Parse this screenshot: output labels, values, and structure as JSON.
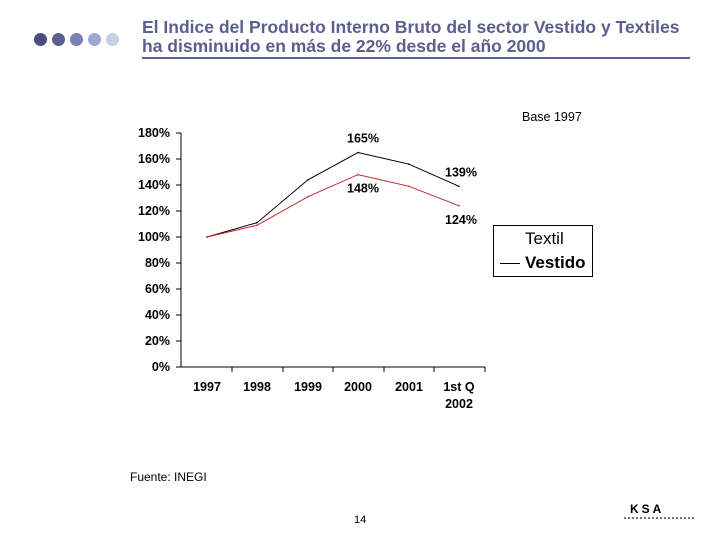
{
  "header": {
    "title_line1": "El Indice del Producto Interno Bruto del sector Vestido y Textiles",
    "title_line2": "ha disminuido en más de 22% desde el año 2000",
    "dot_colors": [
      "#4a4d7e",
      "#5b5f8e",
      "#7a81b5",
      "#9ea7d3",
      "#c8cfe6"
    ]
  },
  "base_label": "Base 1997",
  "chart_data": {
    "type": "line",
    "categories": [
      "1997",
      "1998",
      "1999",
      "2000",
      "2001",
      "1st Q 2002"
    ],
    "category_lines": [
      [
        "1997"
      ],
      [
        "1998"
      ],
      [
        "1999"
      ],
      [
        "2000"
      ],
      [
        "2001"
      ],
      [
        "1st Q",
        "2002"
      ]
    ],
    "y_ticks": [
      "0%",
      "20%",
      "40%",
      "60%",
      "80%",
      "100%",
      "120%",
      "140%",
      "160%",
      "180%"
    ],
    "ylim": [
      0,
      180
    ],
    "series": [
      {
        "name": "Textil",
        "color": "#000000",
        "values": [
          100,
          111,
          144,
          165,
          156,
          139
        ]
      },
      {
        "name": "Vestido",
        "color": "#c0272d",
        "values": [
          100,
          109,
          131,
          148,
          139,
          124
        ]
      }
    ],
    "annotations": [
      {
        "text": "165%",
        "series": 0,
        "index": 3,
        "pos": "above"
      },
      {
        "text": "148%",
        "series": 1,
        "index": 3,
        "pos": "below"
      },
      {
        "text": "139%",
        "series": 0,
        "index": 5,
        "pos": "above"
      },
      {
        "text": "124%",
        "series": 1,
        "index": 5,
        "pos": "below"
      }
    ],
    "legend_position": "right",
    "grid": false
  },
  "footer": {
    "source": "Fuente: INEGI",
    "page_number": "14",
    "logo": "KSA"
  }
}
